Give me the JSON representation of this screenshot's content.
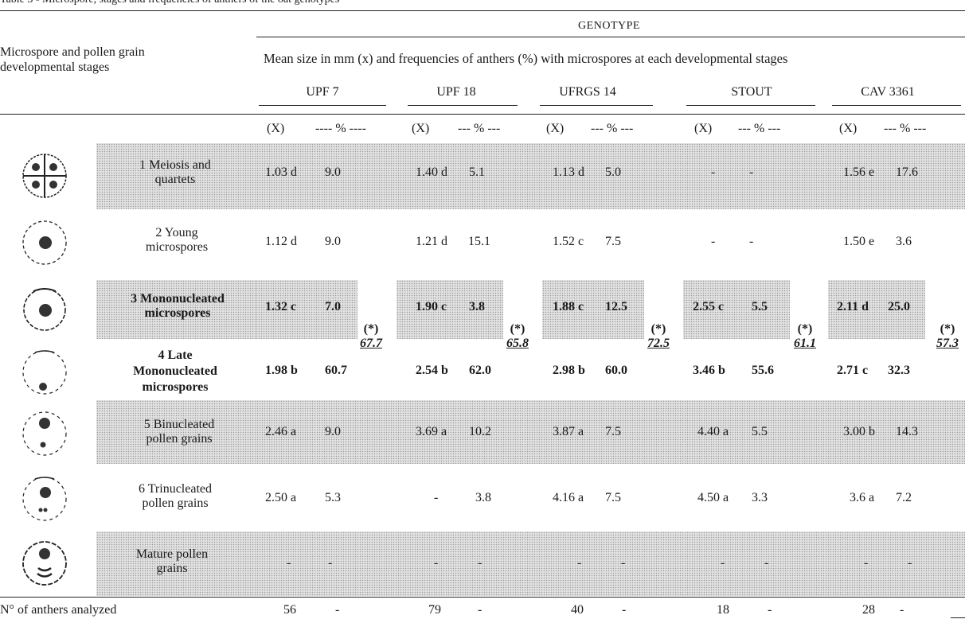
{
  "caption": "Table 3 - Microspore, stages and frequencies of anthers of the oat genotypes",
  "header": {
    "genotype_label": "GENOTYPE",
    "row_head": [
      "Microspore and pollen grain",
      "developmental stages"
    ],
    "subtitle": "Mean size in mm (x) and frequencies of anthers (%) with microspores at each developmental stages",
    "genotypes": [
      "UPF 7",
      "UPF 18",
      "UFRGS 14",
      "STOUT",
      "CAV 3361"
    ],
    "x_label": "(X)",
    "pct_labels": [
      "---- % ----",
      "--- % ---",
      "--- % ---",
      "--- % ---",
      "--- % ---"
    ]
  },
  "stages": [
    {
      "label": [
        "1 Meiosis and",
        "quartets"
      ],
      "icon": "meiosis-quartet-icon",
      "shaded": true,
      "bold": false,
      "cells": [
        [
          "1.03 d",
          "9.0"
        ],
        [
          "1.40 d",
          "5.1"
        ],
        [
          "1.13 d",
          "5.0"
        ],
        [
          "-",
          "-"
        ],
        [
          "1.56 e",
          "17.6"
        ]
      ]
    },
    {
      "label": [
        "2 Young",
        "microspores"
      ],
      "icon": "young-microspore-icon",
      "shaded": false,
      "bold": false,
      "cells": [
        [
          "1.12 d",
          "9.0"
        ],
        [
          "1.21 d",
          "15.1"
        ],
        [
          "1.52 c",
          "7.5"
        ],
        [
          "-",
          "-"
        ],
        [
          "1.50 e",
          "3.6"
        ]
      ]
    },
    {
      "label": [
        "3 Mononucleated",
        "microspores"
      ],
      "icon": "mononucleated-microspore-icon",
      "shaded": true,
      "bold": true,
      "cells": [
        [
          "1.32 c",
          "7.0"
        ],
        [
          "1.90 c",
          "3.8"
        ],
        [
          "1.88 c",
          "12.5"
        ],
        [
          "2.55 c",
          "5.5"
        ],
        [
          "2.11 d",
          "25.0"
        ]
      ]
    },
    {
      "label": [
        "4 Late",
        "Mononucleated",
        "microspores"
      ],
      "icon": "late-mononucleated-icon",
      "shaded": false,
      "bold": true,
      "cells": [
        [
          "1.98 b",
          "60.7"
        ],
        [
          "2.54 b",
          "62.0"
        ],
        [
          "2.98 b",
          "60.0"
        ],
        [
          "3.46 b",
          "55.6"
        ],
        [
          "2.71 c",
          "32.3"
        ]
      ]
    },
    {
      "label": [
        "5 Binucleated",
        "pollen grains"
      ],
      "icon": "binucleated-pollen-icon",
      "shaded": true,
      "bold": false,
      "cells": [
        [
          "2.46 a",
          "9.0"
        ],
        [
          "3.69 a",
          "10.2"
        ],
        [
          "3.87 a",
          "7.5"
        ],
        [
          "4.40 a",
          "5.5"
        ],
        [
          "3.00 b",
          "14.3"
        ]
      ]
    },
    {
      "label": [
        "6 Trinucleated",
        "pollen grains"
      ],
      "icon": "trinucleated-pollen-icon",
      "shaded": false,
      "bold": false,
      "cells": [
        [
          "2.50 a",
          "5.3"
        ],
        [
          "-",
          "3.8"
        ],
        [
          "4.16 a",
          "7.5"
        ],
        [
          "4.50 a",
          "3.3"
        ],
        [
          "3.6 a",
          "7.2"
        ]
      ]
    },
    {
      "label": [
        "Mature pollen",
        "grains"
      ],
      "icon": "mature-pollen-icon",
      "shaded": true,
      "bold": false,
      "cells": [
        [
          "-",
          "-"
        ],
        [
          "-",
          "-"
        ],
        [
          "-",
          "-"
        ],
        [
          "-",
          "-"
        ],
        [
          "-",
          "-"
        ]
      ]
    }
  ],
  "combined": {
    "mark": "(*)",
    "values": [
      "67.7",
      "65.8",
      "72.5",
      "61.1",
      "57.3"
    ]
  },
  "footer": {
    "label": "N° of anthers analyzed",
    "counts": [
      "56",
      "79",
      "40",
      "18",
      "28"
    ],
    "dash": "-"
  }
}
